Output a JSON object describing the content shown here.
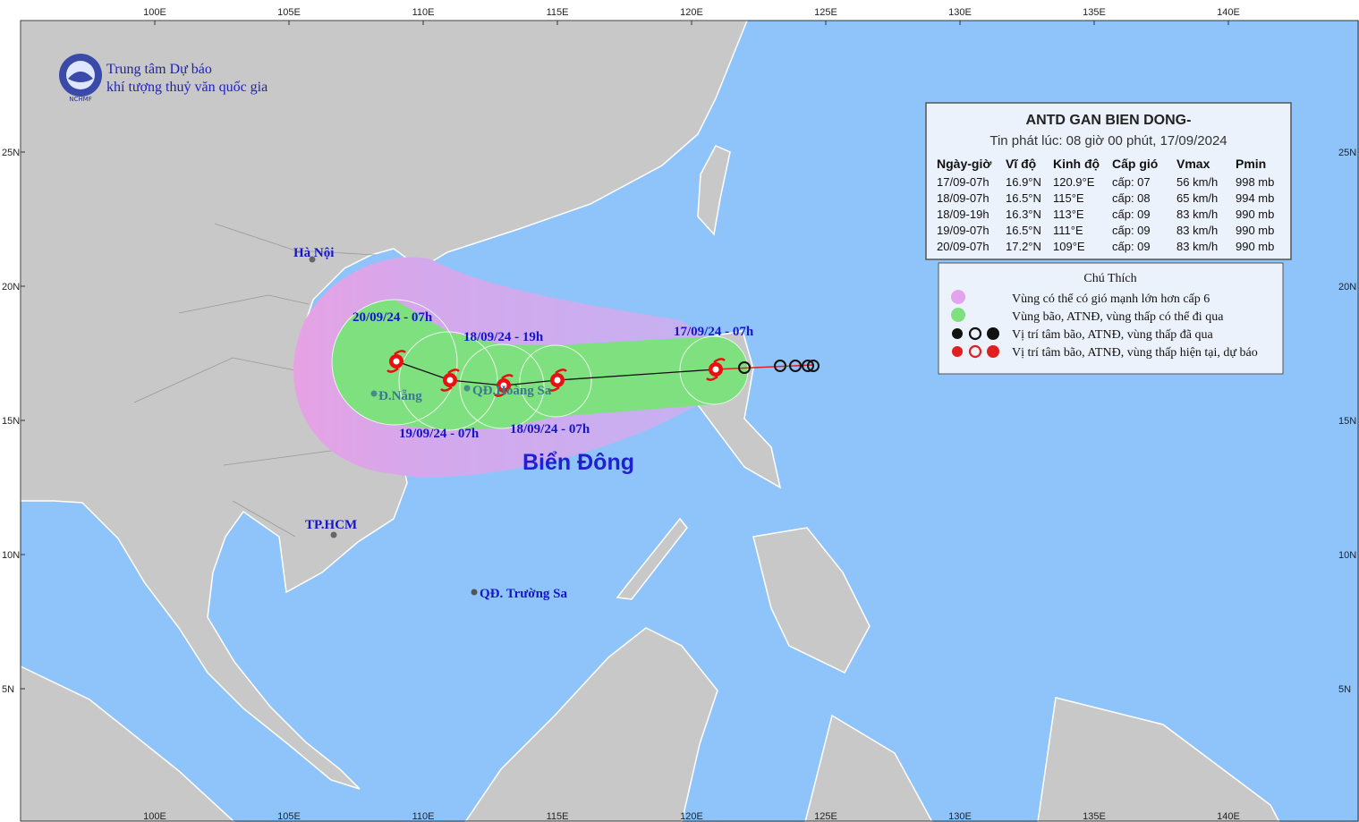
{
  "header": {
    "org_line1": "Trung tâm Dự báo",
    "org_line2": "khí tượng thuỷ văn quốc gia",
    "logo_text": "NCHMF"
  },
  "axes": {
    "lon_ticks": [
      {
        "value": 100,
        "label": "100E"
      },
      {
        "value": 105,
        "label": "105E"
      },
      {
        "value": 110,
        "label": "110E"
      },
      {
        "value": 115,
        "label": "115E"
      },
      {
        "value": 120,
        "label": "120E"
      },
      {
        "value": 125,
        "label": "125E"
      },
      {
        "value": 130,
        "label": "130E"
      },
      {
        "value": 135,
        "label": "135E"
      },
      {
        "value": 140,
        "label": "140E"
      }
    ],
    "lat_ticks": [
      {
        "value": 25,
        "label": "25N"
      },
      {
        "value": 20,
        "label": "20N"
      },
      {
        "value": 15,
        "label": "15N"
      },
      {
        "value": 10,
        "label": "10N"
      },
      {
        "value": 5,
        "label": "5N"
      }
    ]
  },
  "info": {
    "title": "ANTD GAN BIEN DONG-",
    "issued": "Tin phát lúc: 08 giờ 00 phút, 17/09/2024",
    "table": {
      "headers": [
        "Ngày-giờ",
        "Vĩ độ",
        "Kinh độ",
        "Cấp gió",
        "Vmax",
        "Pmin"
      ],
      "rows": [
        [
          "17/09-07h",
          "16.9°N",
          "120.9°E",
          "cấp: 07",
          "56 km/h",
          "998 mb"
        ],
        [
          "18/09-07h",
          "16.5°N",
          "115°E",
          "cấp: 08",
          "65 km/h",
          "994 mb"
        ],
        [
          "18/09-19h",
          "16.3°N",
          "113°E",
          "cấp: 09",
          "83 km/h",
          "990 mb"
        ],
        [
          "19/09-07h",
          "16.5°N",
          "111°E",
          "cấp: 09",
          "83 km/h",
          "990 mb"
        ],
        [
          "20/09-07h",
          "17.2°N",
          "109°E",
          "cấp: 09",
          "83 km/h",
          "990 mb"
        ]
      ]
    }
  },
  "legend": {
    "title": "Chú Thích",
    "items": [
      "Vùng có thể có gió mạnh lớn hơn cấp 6",
      "Vùng bão, ATNĐ, vùng thấp có thể đi qua",
      "Vị trí tâm bão, ATNĐ, vùng thấp đã qua",
      "Vị trí tâm bão, ATNĐ, vùng thấp hiện tại, dự báo"
    ]
  },
  "places": {
    "ha_noi": "Hà Nội",
    "da_nang": "Đ.Nẵng",
    "hoang_sa": "QĐ.Hoàng Sa",
    "hcm": "TP.HCM",
    "truong_sa": "QĐ. Trường Sa",
    "sea": "Biển Đông"
  },
  "track_labels": [
    "17/09/24 - 07h",
    "18/09/24 - 07h",
    "18/09/24 - 19h",
    "19/09/24 - 07h",
    "20/09/24 - 07h"
  ]
}
